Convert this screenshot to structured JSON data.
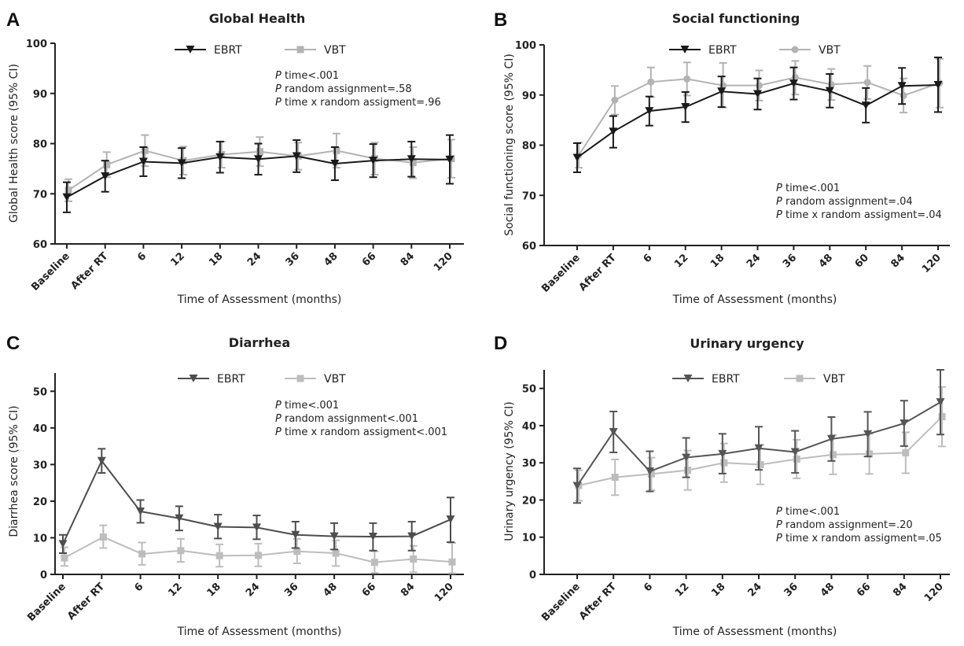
{
  "chart_data": [
    {
      "panel": "A",
      "type": "line",
      "title": "Global Health",
      "xlabel": "Time of Assessment (months)",
      "ylabel": "Global Health score (95% CI)",
      "categories": [
        "Baseline",
        "After RT",
        "6",
        "12",
        "18",
        "24",
        "36",
        "48",
        "66",
        "84",
        "120"
      ],
      "ylim": [
        60,
        100
      ],
      "yticks": [
        60,
        70,
        80,
        90,
        100
      ],
      "legend_position": "top",
      "series": [
        {
          "name": "EBRT",
          "marker": "triangle-down",
          "color": "#1a1a1a",
          "values": [
            69.3,
            73.5,
            76.4,
            76.1,
            77.3,
            76.9,
            77.5,
            76.0,
            76.6,
            76.9,
            76.8
          ],
          "ci_low": [
            66.3,
            70.4,
            73.5,
            73.1,
            74.2,
            73.8,
            74.3,
            72.7,
            73.3,
            73.4,
            72.0
          ],
          "ci_high": [
            72.3,
            76.6,
            79.3,
            79.1,
            80.4,
            80.0,
            80.7,
            79.3,
            79.9,
            80.4,
            81.7
          ]
        },
        {
          "name": "VBT",
          "marker": "square",
          "color": "#b3b3b3",
          "values": [
            70.7,
            75.8,
            78.6,
            76.6,
            77.8,
            78.4,
            77.5,
            78.6,
            77.0,
            76.2,
            77.0
          ],
          "ci_low": [
            68.5,
            73.3,
            75.5,
            73.8,
            75.2,
            75.5,
            74.8,
            75.2,
            73.8,
            73.1,
            73.2
          ],
          "ci_high": [
            72.9,
            78.3,
            81.7,
            79.4,
            80.4,
            81.3,
            80.2,
            82.0,
            80.2,
            79.3,
            80.8
          ]
        }
      ],
      "annotation": [
        {
          "p": "P",
          "text": " time<.001"
        },
        {
          "p": "P",
          "text": " random assignment=.58"
        },
        {
          "p": "P",
          "text": " time x random assigment=.96"
        }
      ]
    },
    {
      "panel": "B",
      "type": "line",
      "title": "Social functioning",
      "xlabel": "Time of Assessment (months)",
      "ylabel": "Social functioning score (95% CI)",
      "categories": [
        "Baseline",
        "After RT",
        "6",
        "12",
        "18",
        "24",
        "36",
        "48",
        "60",
        "84",
        "120"
      ],
      "ylim": [
        60,
        100
      ],
      "yticks": [
        60,
        70,
        80,
        90,
        100
      ],
      "legend_position": "top",
      "series": [
        {
          "name": "EBRT",
          "marker": "triangle-down",
          "color": "#1a1a1a",
          "values": [
            77.5,
            82.7,
            86.8,
            87.6,
            90.7,
            90.2,
            92.3,
            90.8,
            87.9,
            91.8,
            92.0
          ],
          "ci_low": [
            74.6,
            79.5,
            83.9,
            84.6,
            87.6,
            87.1,
            89.1,
            87.5,
            84.5,
            88.2,
            86.6
          ],
          "ci_high": [
            80.4,
            85.8,
            89.7,
            90.6,
            93.7,
            93.3,
            95.5,
            94.2,
            91.4,
            95.4,
            97.5
          ]
        },
        {
          "name": "VBT",
          "marker": "circle",
          "color": "#b3b3b3",
          "values": [
            78.0,
            89.0,
            92.6,
            93.2,
            91.9,
            91.9,
            93.5,
            92.1,
            92.5,
            89.9,
            92.4
          ],
          "ci_low": [
            75.5,
            86.1,
            89.6,
            89.9,
            87.5,
            88.9,
            90.1,
            89.0,
            89.2,
            86.5,
            87.5
          ],
          "ci_high": [
            80.5,
            91.8,
            95.5,
            96.5,
            96.4,
            94.9,
            96.8,
            95.2,
            95.8,
            93.3,
            97.2
          ]
        }
      ],
      "annotation": [
        {
          "p": "P",
          "text": " time<.001"
        },
        {
          "p": "P",
          "text": " random assignment=.04"
        },
        {
          "p": "P",
          "text": " time x random assigment=.04"
        }
      ]
    },
    {
      "panel": "C",
      "type": "line",
      "title": "Diarrhea",
      "xlabel": "Time of Assessment (months)",
      "ylabel": "Diarrhea score (95% CI)",
      "categories": [
        "Baseline",
        "After RT",
        "6",
        "12",
        "18",
        "24",
        "36",
        "48",
        "66",
        "84",
        "120"
      ],
      "ylim": [
        0,
        55
      ],
      "yticks": [
        0,
        10,
        20,
        30,
        40,
        50
      ],
      "legend_position": "top",
      "series": [
        {
          "name": "EBRT",
          "marker": "triangle-down",
          "color": "#4d4d4d",
          "values": [
            8.3,
            31.0,
            17.2,
            15.3,
            13.0,
            12.8,
            10.8,
            10.4,
            10.3,
            10.4,
            15.0
          ],
          "ci_low": [
            5.8,
            27.7,
            14.1,
            12.0,
            9.8,
            9.6,
            7.2,
            6.8,
            6.5,
            6.5,
            8.8
          ],
          "ci_high": [
            10.8,
            34.3,
            20.3,
            18.6,
            16.3,
            16.1,
            14.4,
            14.0,
            14.0,
            14.4,
            21.0
          ]
        },
        {
          "name": "VBT",
          "marker": "square",
          "color": "#bdbdbd",
          "values": [
            4.5,
            10.2,
            5.6,
            6.5,
            5.1,
            5.2,
            6.3,
            5.8,
            3.3,
            4.2,
            3.4
          ],
          "ci_low": [
            2.3,
            7.2,
            2.6,
            3.4,
            2.1,
            2.2,
            3.0,
            2.3,
            0.4,
            0.6,
            0.3
          ],
          "ci_high": [
            7.4,
            13.4,
            8.7,
            9.7,
            8.2,
            8.4,
            9.7,
            9.3,
            6.3,
            7.8,
            8.6
          ]
        }
      ],
      "annotation": [
        {
          "p": "P",
          "text": " time<.001"
        },
        {
          "p": "P",
          "text": " random assignment<.001"
        },
        {
          "p": "P",
          "text": " time x random assigment<.001"
        }
      ]
    },
    {
      "panel": "D",
      "type": "line",
      "title": "Urinary urgency",
      "xlabel": "Time of Assessment (months)",
      "ylabel": "Urinary urgency (95% CI)",
      "categories": [
        "Baseline",
        "After RT",
        "6",
        "12",
        "18",
        "24",
        "36",
        "48",
        "66",
        "84",
        "120"
      ],
      "ylim": [
        0,
        55
      ],
      "yticks": [
        0,
        10,
        20,
        30,
        40,
        50
      ],
      "legend_position": "top",
      "series": [
        {
          "name": "EBRT",
          "marker": "triangle-down",
          "color": "#555555",
          "values": [
            23.8,
            38.3,
            27.7,
            31.4,
            32.4,
            33.9,
            32.9,
            36.4,
            37.7,
            40.6,
            46.3
          ],
          "ci_low": [
            19.2,
            32.8,
            22.3,
            26.1,
            27.1,
            28.1,
            27.3,
            30.5,
            31.7,
            34.5,
            37.6
          ],
          "ci_high": [
            28.5,
            43.8,
            33.1,
            36.7,
            37.8,
            39.7,
            38.6,
            42.3,
            43.7,
            46.7,
            55.0
          ]
        },
        {
          "name": "VBT",
          "marker": "square",
          "color": "#bdbdbd",
          "values": [
            23.9,
            26.1,
            27.0,
            28.0,
            30.0,
            29.5,
            31.0,
            32.2,
            32.4,
            32.7,
            42.4
          ],
          "ci_low": [
            19.8,
            21.3,
            22.6,
            22.7,
            24.8,
            24.2,
            25.8,
            26.9,
            27.0,
            27.2,
            34.4
          ],
          "ci_high": [
            28.0,
            30.9,
            31.4,
            33.3,
            35.2,
            34.8,
            36.2,
            37.5,
            37.8,
            38.2,
            50.4
          ]
        }
      ],
      "annotation": [
        {
          "p": "P",
          "text": " time<.001"
        },
        {
          "p": "P",
          "text": " random assignment=.20"
        },
        {
          "p": "P",
          "text": " time x random assigment=.05"
        }
      ]
    }
  ]
}
